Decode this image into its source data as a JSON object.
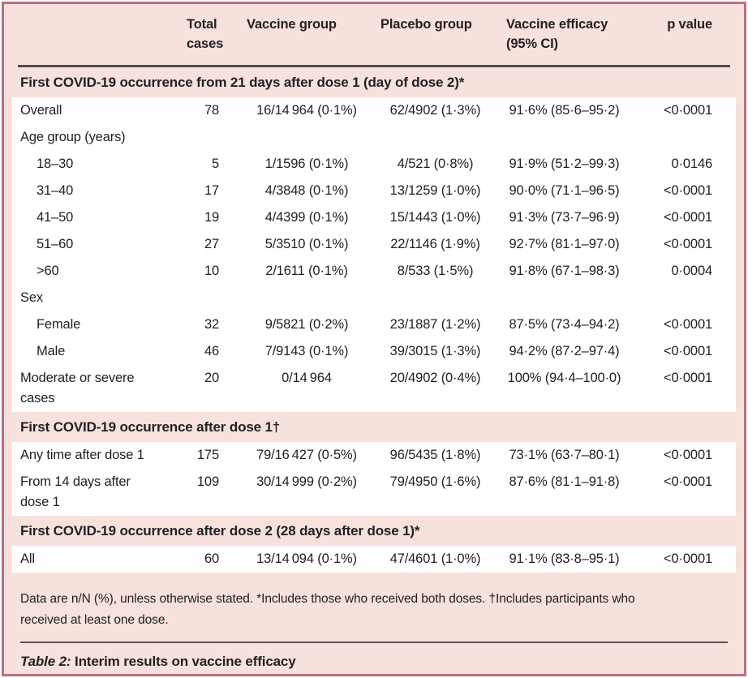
{
  "colors": {
    "frame_border": "#bf6e84",
    "panel_background": "#f7e1dc",
    "row_background": "#ffffff",
    "header_rule": "#4c4c4e",
    "text": "#232122"
  },
  "header": {
    "total": "Total\ncases",
    "vaccine": "Vaccine group",
    "placebo": "Placebo group",
    "efficacy": "Vaccine efficacy\n(95% CI)",
    "p": "p value"
  },
  "sections": [
    {
      "title": "First COVID-19 occurrence from 21 days after dose 1 (day of dose 2)*",
      "rows": [
        {
          "label": "Overall",
          "cells": [
            "78",
            "16/14 964 (0·1%)",
            "62/4902 (1·3%)",
            "91·6% (85·6–95·2)",
            "<0·0001"
          ]
        },
        {
          "label": "Age group (years)",
          "cells": [
            "",
            "",
            "",
            "",
            ""
          ]
        },
        {
          "label": "18–30",
          "cells": [
            "5",
            "1/1596 (0·1%)",
            "4/521 (0·8%)",
            "91·9% (51·2–99·3)",
            "0·0146"
          ]
        },
        {
          "label": "31–40",
          "cells": [
            "17",
            "4/3848 (0·1%)",
            "13/1259 (1·0%)",
            "90·0% (71·1–96·5)",
            "<0·0001"
          ]
        },
        {
          "label": "41–50",
          "cells": [
            "19",
            "4/4399 (0·1%)",
            "15/1443 (1·0%)",
            "91·3% (73·7–96·9)",
            "<0·0001"
          ]
        },
        {
          "label": "51–60",
          "cells": [
            "27",
            "5/3510 (0·1%)",
            "22/1146 (1·9%)",
            "92·7% (81·1–97·0)",
            "<0·0001"
          ]
        },
        {
          "label": ">60",
          "cells": [
            "10",
            "2/1611 (0·1%)",
            "8/533 (1·5%)",
            "91·8% (67·1–98·3)",
            "0·0004"
          ]
        },
        {
          "label": "Sex",
          "cells": [
            "",
            "",
            "",
            "",
            ""
          ]
        },
        {
          "label": "Female",
          "cells": [
            "32",
            "9/5821 (0·2%)",
            "23/1887 (1·2%)",
            "87·5% (73·4–94·2)",
            "<0·0001"
          ]
        },
        {
          "label": "Male",
          "cells": [
            "46",
            "7/9143 (0·1%)",
            "39/3015 (1·3%)",
            "94·2% (87·2–97·4)",
            "<0·0001"
          ]
        },
        {
          "label": "Moderate or severe\ncases",
          "cells": [
            "20",
            "0/14 964",
            "20/4902 (0·4%)",
            "100% (94·4–100·0)",
            "<0·0001"
          ]
        }
      ]
    },
    {
      "title": "First COVID-19 occurrence after dose 1†",
      "rows": [
        {
          "label": "Any time after dose 1",
          "cells": [
            "175",
            "79/16 427 (0·5%)",
            "96/5435 (1·8%)",
            "73·1% (63·7–80·1)",
            "<0·0001"
          ]
        },
        {
          "label": "From 14 days after\ndose 1",
          "cells": [
            "109",
            "30/14 999 (0·2%)",
            "79/4950 (1·6%)",
            "87·6% (81·1–91·8)",
            "<0·0001"
          ]
        }
      ]
    },
    {
      "title": "First COVID-19 occurrence after dose 2 (28 days after dose 1)*",
      "rows": [
        {
          "label": "All",
          "cells": [
            "60",
            "13/14 094 (0·1%)",
            "47/4601 (1·0%)",
            "91·1% (83·8–95·1)",
            "<0·0001"
          ]
        }
      ]
    }
  ],
  "footnote": "Data are n/N (%), unless otherwise stated. *Includes those who received both doses. †Includes participants who\nreceived at least one dose.",
  "caption": {
    "label": "Table 2:",
    "text": "Interim results on vaccine efficacy"
  }
}
